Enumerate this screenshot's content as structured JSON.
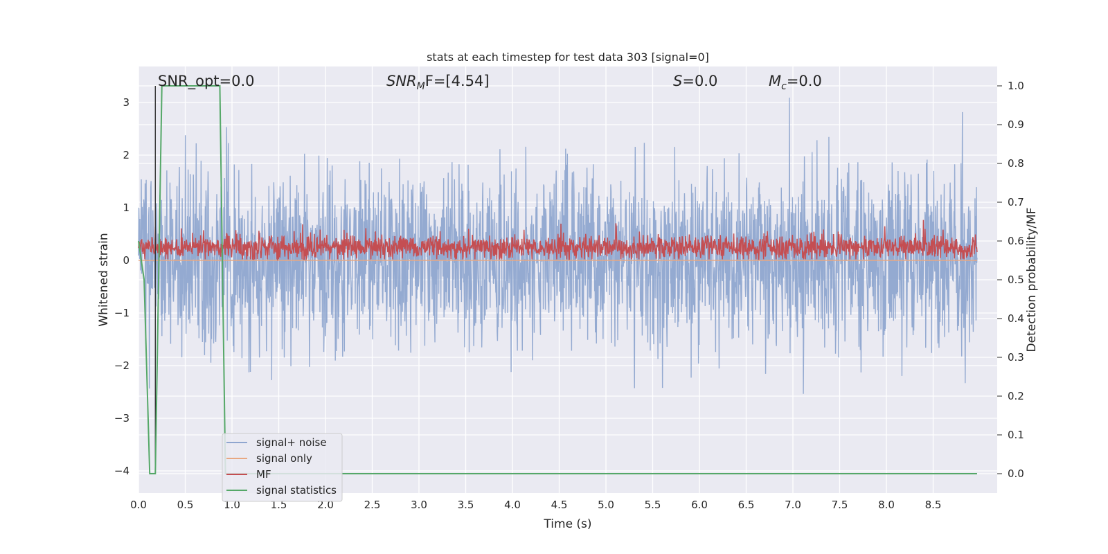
{
  "chart_data": {
    "type": "line",
    "title": "stats at each timestep for test data 303 [signal=0]",
    "xlabel": "Time (s)",
    "ylabel": "Whitened strain",
    "y2label": "Detection probability/MF",
    "xlim": [
      0.0,
      9.0
    ],
    "ylim": [
      -4.35,
      3.65
    ],
    "y2lim": [
      -0.05,
      1.05
    ],
    "xticks": [
      "0.0",
      "0.5",
      "1.0",
      "1.5",
      "2.0",
      "2.5",
      "3.0",
      "3.5",
      "4.0",
      "4.5",
      "5.0",
      "5.5",
      "6.0",
      "6.5",
      "7.0",
      "7.5",
      "8.0",
      "8.5"
    ],
    "yticks": [
      "3",
      "2",
      "1",
      "0",
      "−1",
      "−2",
      "−3",
      "−4"
    ],
    "y2ticks": [
      "1.0",
      "0.9",
      "0.8",
      "0.7",
      "0.6",
      "0.5",
      "0.4",
      "0.3",
      "0.2",
      "0.1",
      "0.0"
    ],
    "grid": true,
    "legend_position": "lower-left",
    "annotations": {
      "snr_opt": "SNR_opt=0.0",
      "snr_mf_main": "SNR",
      "snr_mf_sub": "M",
      "snr_mf_rest": "F=[4.54]",
      "s_main": "S",
      "s_rest": "=0.0",
      "mc_main": "M",
      "mc_sub": "c",
      "mc_rest": "=0.0"
    },
    "marker_line_x": 0.18,
    "series": [
      {
        "name": "signal+ noise",
        "color": "#8fa6cf",
        "axis": "left",
        "style": "gaussian noise, sigma ≈ 0.85, sampled densely from 0 to 9 s",
        "sigma": 0.85,
        "samples": 2400
      },
      {
        "name": "signal only",
        "color": "#e8a882",
        "axis": "left",
        "x": [
          0.0,
          9.0
        ],
        "y": [
          0.0,
          0.0
        ]
      },
      {
        "name": "MF",
        "color": "#c44e52",
        "axis": "left",
        "style": "positive noise around 0.25",
        "mean": 0.25,
        "samples": 2000
      },
      {
        "name": "signal statistics",
        "color": "#55a868",
        "axis": "right",
        "x": [
          0.0,
          0.06,
          0.12,
          0.18,
          0.25,
          0.5,
          0.87,
          0.93,
          2.0,
          9.0
        ],
        "y": [
          0.6,
          0.5,
          0.0,
          0.0,
          1.0,
          1.0,
          1.0,
          0.0,
          0.0,
          0.0
        ]
      }
    ]
  }
}
